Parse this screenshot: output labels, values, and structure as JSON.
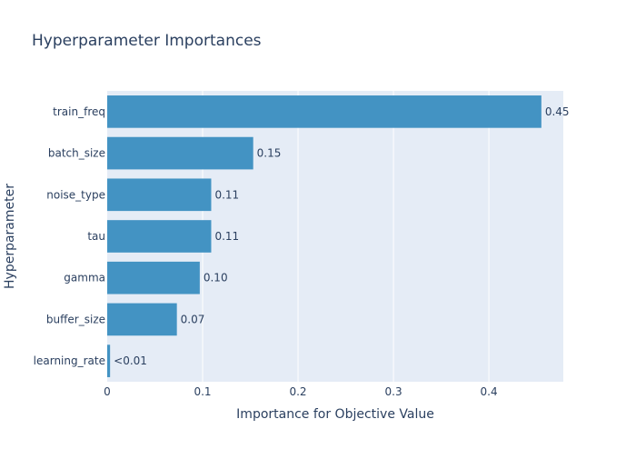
{
  "chart_data": {
    "type": "bar",
    "orientation": "horizontal",
    "title": "Hyperparameter Importances",
    "xlabel": "Importance for Objective Value",
    "ylabel": "Hyperparameter",
    "categories": [
      "train_freq",
      "batch_size",
      "noise_type",
      "tau",
      "gamma",
      "buffer_size",
      "learning_rate"
    ],
    "values": [
      0.455,
      0.153,
      0.109,
      0.109,
      0.097,
      0.073,
      0.003
    ],
    "data_labels": [
      "0.45",
      "0.15",
      "0.11",
      "0.11",
      "0.10",
      "0.07",
      "<0.01"
    ],
    "xticks": [
      "0",
      "0.1",
      "0.2",
      "0.3",
      "0.4"
    ],
    "xtick_values": [
      0,
      0.1,
      0.2,
      0.3,
      0.4
    ],
    "xlim": [
      0,
      0.478
    ],
    "grid": true,
    "colors": {
      "bar": "#4393c3",
      "plot_bg": "#e5ecf6",
      "grid": "#ffffff",
      "text": "#2a3f5f"
    }
  }
}
